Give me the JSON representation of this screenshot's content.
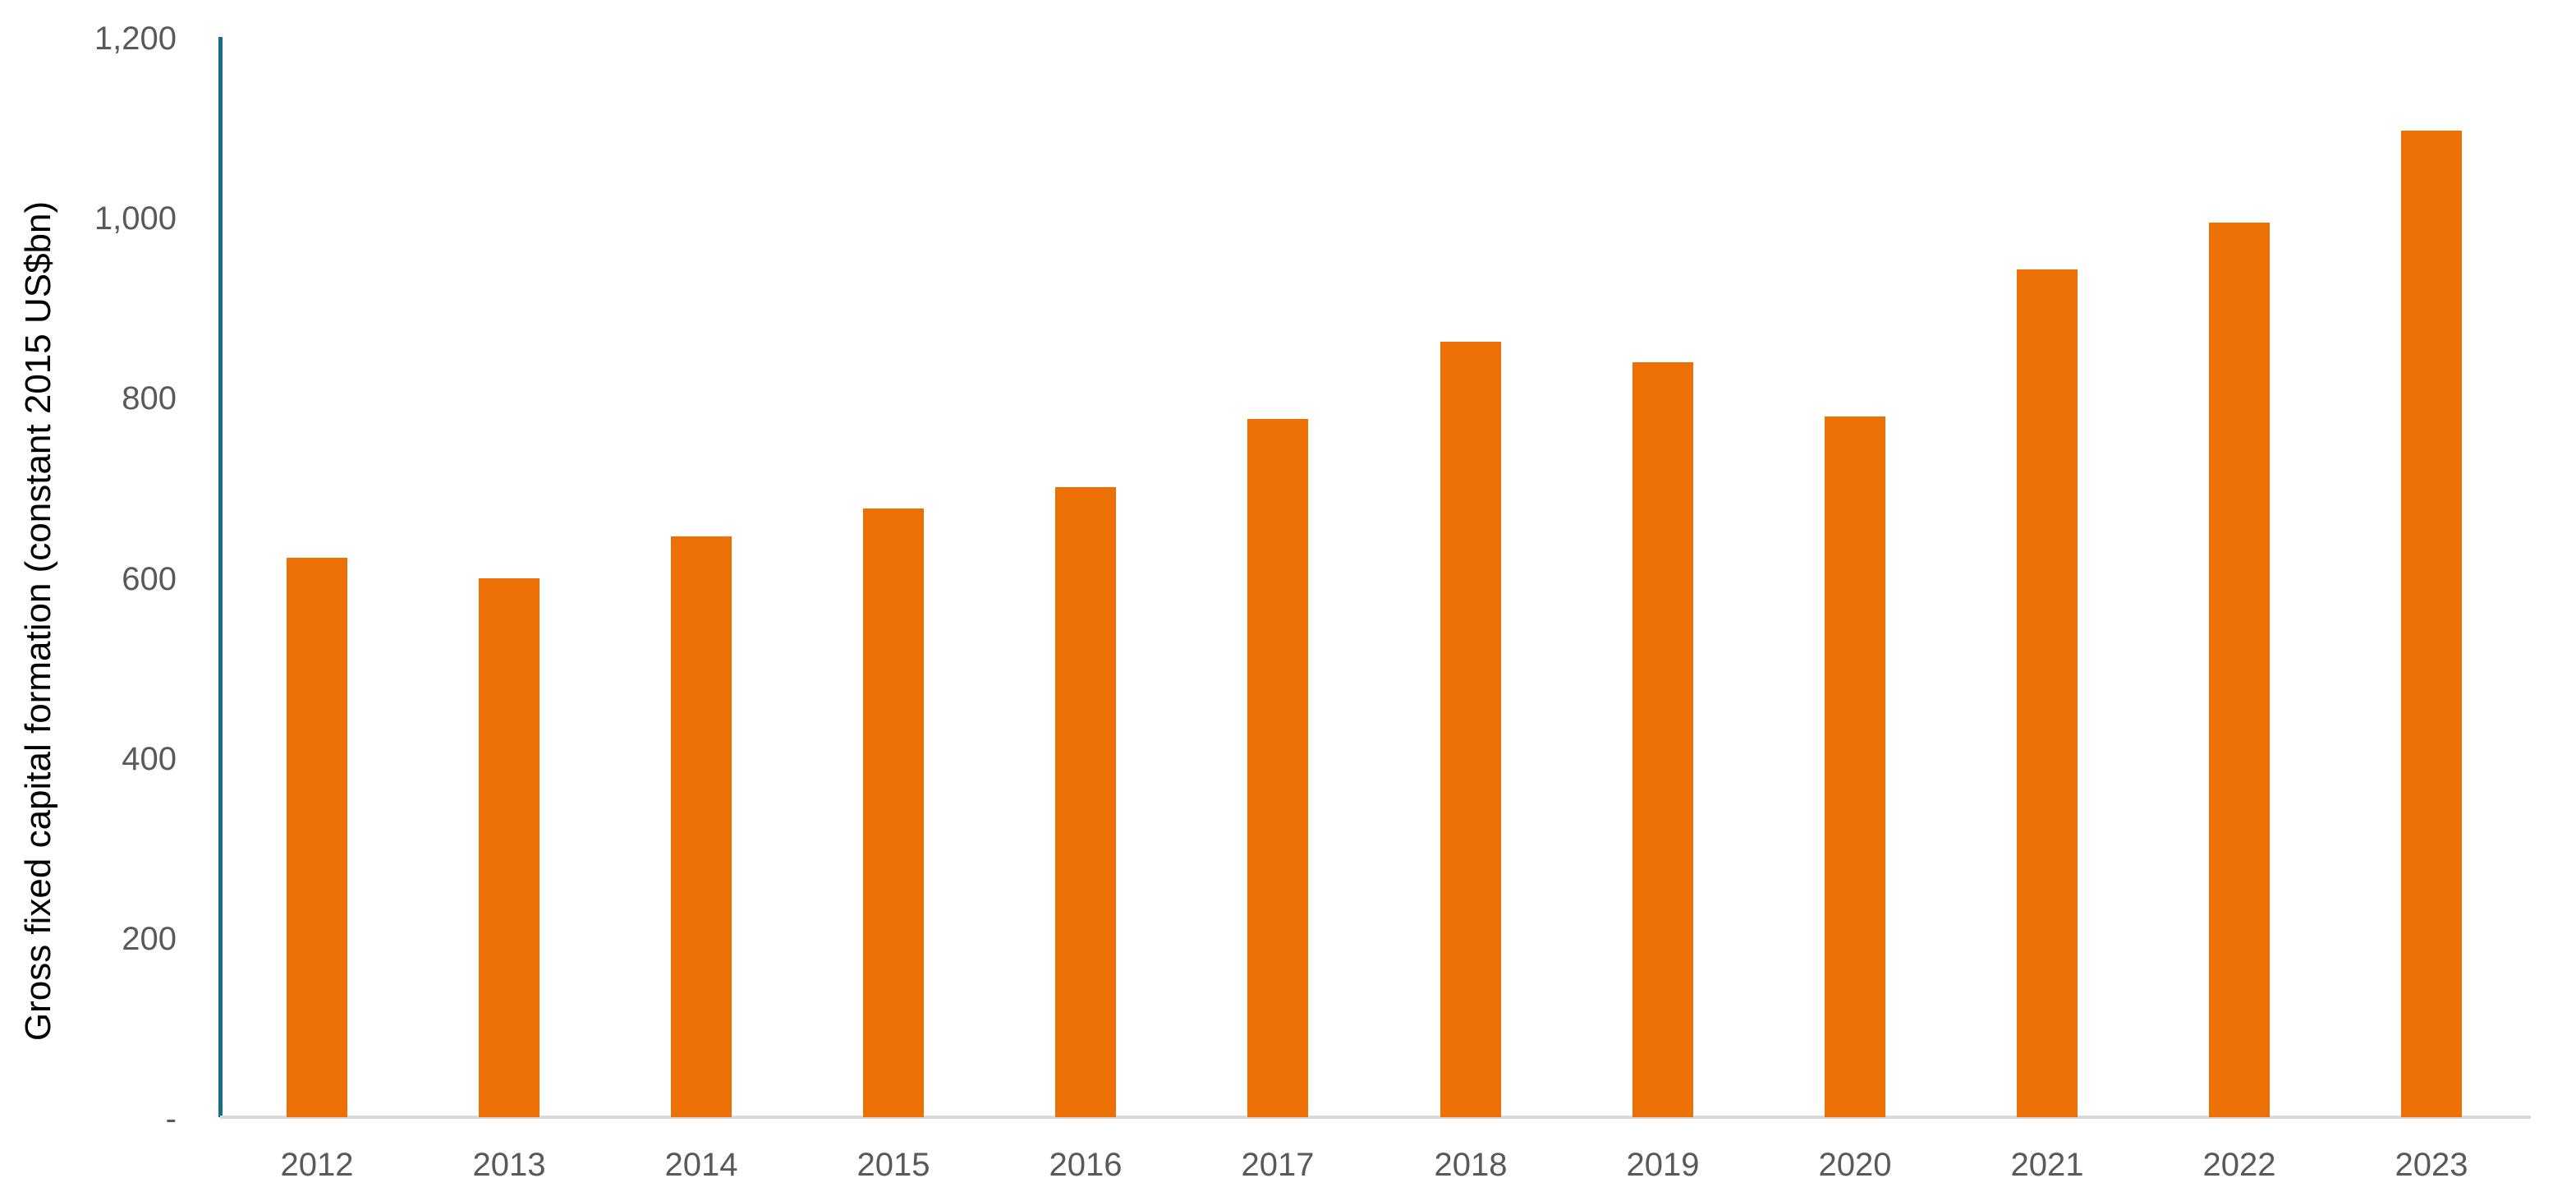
{
  "page": {
    "background_color": "#ffffff"
  },
  "chart_data": {
    "type": "bar",
    "title": "",
    "xlabel": "",
    "ylabel": "Gross fixed capital formation (constant 2015 US$bn)",
    "categories": [
      "2012",
      "2013",
      "2014",
      "2015",
      "2016",
      "2017",
      "2018",
      "2019",
      "2020",
      "2021",
      "2022",
      "2023"
    ],
    "values": [
      621,
      599,
      645,
      676,
      700,
      776,
      861,
      839,
      778,
      942,
      994,
      1096
    ],
    "series": [
      {
        "name": "Gross fixed capital formation",
        "values": [
          621,
          599,
          645,
          676,
          700,
          776,
          861,
          839,
          778,
          942,
          994,
          1096
        ]
      }
    ],
    "ylim": [
      0,
      1200
    ],
    "ytick_interval": 200,
    "yticks": [
      {
        "label": "-",
        "value": 0
      },
      {
        "label": "200",
        "value": 200
      },
      {
        "label": "400",
        "value": 400
      },
      {
        "label": "600",
        "value": 600
      },
      {
        "label": "800",
        "value": 800
      },
      {
        "label": "1,000",
        "value": 1000
      },
      {
        "label": "1,200",
        "value": 1200
      }
    ],
    "grid": false,
    "legend": null,
    "colors": {
      "bar": "#EC7006",
      "axis_line": "#176E87",
      "baseline": "#D9D9D9",
      "tick_text": "#595959",
      "axis_title_text": "#000000"
    }
  }
}
